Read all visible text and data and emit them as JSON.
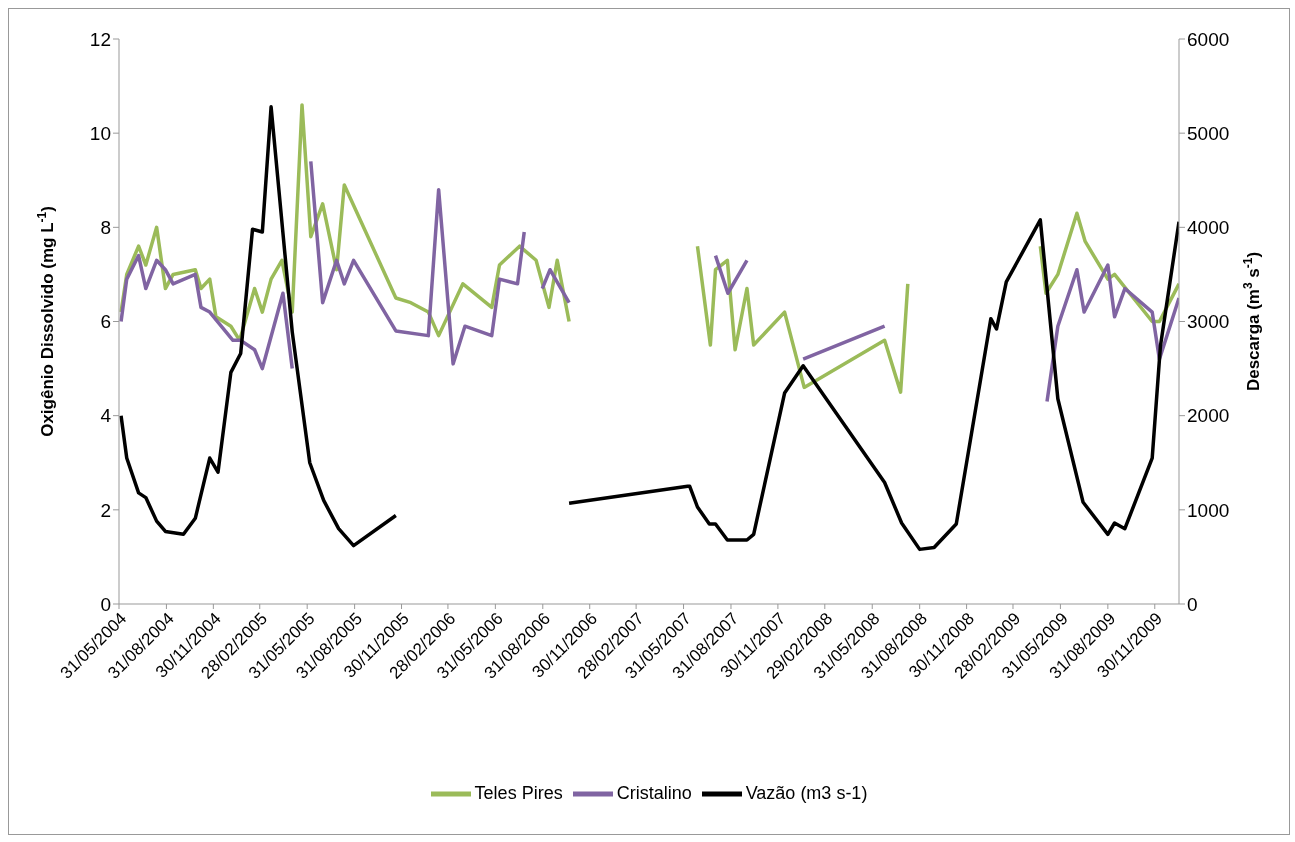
{
  "chart_data": {
    "type": "line",
    "ylabel": "Oxigênio Dissolvido  (mg L$^{-1}$)",
    "y2label": "Descarga (m$^{3}$ s$^{-1}$)",
    "xlim": [
      "2004-05-31",
      "2010-01-16"
    ],
    "xticks": [
      {
        "value": "2004-05-31",
        "label": "31/05/2004"
      },
      {
        "value": "2004-08-31",
        "label": "31/08/2004"
      },
      {
        "value": "2004-11-30",
        "label": "30/11/2004"
      },
      {
        "value": "2005-02-28",
        "label": "28/02/2005"
      },
      {
        "value": "2005-05-31",
        "label": "31/05/2005"
      },
      {
        "value": "2005-08-31",
        "label": "31/08/2005"
      },
      {
        "value": "2005-11-30",
        "label": "30/11/2005"
      },
      {
        "value": "2006-02-28",
        "label": "28/02/2006"
      },
      {
        "value": "2006-05-31",
        "label": "31/05/2006"
      },
      {
        "value": "2006-08-31",
        "label": "31/08/2006"
      },
      {
        "value": "2006-11-30",
        "label": "30/11/2006"
      },
      {
        "value": "2007-02-28",
        "label": "28/02/2007"
      },
      {
        "value": "2007-05-31",
        "label": "31/05/2007"
      },
      {
        "value": "2007-08-31",
        "label": "31/08/2007"
      },
      {
        "value": "2007-11-30",
        "label": "30/11/2007"
      },
      {
        "value": "2008-02-29",
        "label": "29/02/2008"
      },
      {
        "value": "2008-05-31",
        "label": "31/05/2008"
      },
      {
        "value": "2008-08-31",
        "label": "31/08/2008"
      },
      {
        "value": "2008-11-30",
        "label": "30/11/2008"
      },
      {
        "value": "2009-02-28",
        "label": "28/02/2009"
      },
      {
        "value": "2009-05-31",
        "label": "31/05/2009"
      },
      {
        "value": "2009-08-31",
        "label": "31/08/2009"
      },
      {
        "value": "2009-11-30",
        "label": "30/11/2009"
      }
    ],
    "ylim": [
      0,
      12
    ],
    "yticks": [
      0,
      2,
      4,
      6,
      8,
      10,
      12
    ],
    "y2lim": [
      0,
      6000
    ],
    "y2ticks": [
      0,
      1000,
      2000,
      3000,
      4000,
      5000,
      6000
    ],
    "grid": false,
    "legend": "bottom",
    "marker": "none",
    "line_style": "solid",
    "series": [
      {
        "name": "Teles Pires",
        "color": "#9bbb59",
        "x": [
          "2004-06-04",
          "2004-06-15",
          "2004-07-08",
          "2004-07-22",
          "2004-08-12",
          "2004-08-29",
          "2004-09-13",
          "2004-10-26",
          "2004-11-06",
          "2004-11-23",
          "2004-12-05",
          "2005-01-03",
          "2005-01-20",
          "2005-02-18",
          "2005-03-05",
          "2005-03-22",
          "2005-04-12",
          "2005-05-02",
          "2005-05-21",
          "2005-06-07",
          "2005-06-30",
          "2005-07-27",
          "2005-08-11",
          "2005-11-19",
          "2005-12-18",
          "2006-01-21",
          "2006-02-10",
          "2006-03-29",
          "2006-05-24",
          "2006-06-08",
          "2006-07-17",
          "2006-08-18",
          "2006-09-12",
          "2006-09-28",
          "2006-10-21",
          "2007-01-01",
          "2007-06-27",
          "2007-07-22",
          "2007-08-01",
          "2007-08-24",
          "2007-09-08",
          "2007-10-01",
          "2007-10-14",
          "2007-12-13",
          "2008-01-20",
          "2008-06-24",
          "2008-07-25",
          "2008-08-08",
          "2009-01-01",
          "2009-04-22",
          "2009-05-03",
          "2009-05-26",
          "2009-07-02",
          "2009-07-18",
          "2009-08-31",
          "2009-09-13",
          "2009-11-25",
          "2009-12-09",
          "2010-01-16"
        ],
        "values": [
          6.2,
          7.0,
          7.6,
          7.2,
          8.0,
          6.7,
          7.0,
          7.1,
          6.7,
          6.9,
          6.1,
          5.9,
          5.6,
          6.7,
          6.2,
          6.9,
          7.3,
          6.2,
          10.6,
          7.8,
          8.5,
          7.1,
          8.9,
          6.5,
          6.4,
          6.2,
          5.7,
          6.8,
          6.3,
          7.2,
          7.6,
          7.3,
          6.3,
          7.3,
          6.0,
          null,
          7.6,
          5.5,
          7.1,
          7.3,
          5.4,
          6.7,
          5.5,
          6.2,
          4.6,
          5.6,
          4.5,
          6.8,
          null,
          7.6,
          6.6,
          7.0,
          8.3,
          7.7,
          6.9,
          7.0,
          6.0,
          6.0,
          6.8
        ]
      },
      {
        "name": "Cristalino",
        "color": "#8064a2",
        "x": [
          "2004-06-04",
          "2004-06-15",
          "2004-07-08",
          "2004-07-22",
          "2004-08-12",
          "2004-08-29",
          "2004-09-13",
          "2004-10-26",
          "2004-11-06",
          "2004-11-23",
          "2005-01-07",
          "2005-01-22",
          "2005-02-18",
          "2005-03-05",
          "2005-04-14",
          "2005-05-02",
          "2005-05-20",
          "2005-06-07",
          "2005-06-30",
          "2005-07-27",
          "2005-08-11",
          "2005-08-29",
          "2005-11-19",
          "2006-01-21",
          "2006-02-10",
          "2006-03-10",
          "2006-04-02",
          "2006-05-24",
          "2006-06-08",
          "2006-07-13",
          "2006-07-26",
          "2006-08-10",
          "2006-08-30",
          "2006-09-14",
          "2006-10-21",
          "2007-03-01",
          "2007-08-01",
          "2007-08-25",
          "2007-10-01",
          "2007-11-01",
          "2008-01-18",
          "2008-06-24",
          "2009-01-01",
          "2009-05-05",
          "2009-05-26",
          "2009-07-02",
          "2009-07-16",
          "2009-08-31",
          "2009-09-13",
          "2009-10-03",
          "2009-11-25",
          "2009-12-09",
          "2010-01-16"
        ],
        "values": [
          6.0,
          6.9,
          7.4,
          6.7,
          7.3,
          7.1,
          6.8,
          7.0,
          6.3,
          6.2,
          5.6,
          5.6,
          5.4,
          5.0,
          6.6,
          5.0,
          null,
          9.4,
          6.4,
          7.3,
          6.8,
          7.3,
          5.8,
          5.7,
          8.8,
          5.1,
          5.9,
          5.7,
          6.9,
          6.8,
          7.9,
          null,
          6.7,
          7.1,
          6.4,
          null,
          7.4,
          6.6,
          7.3,
          null,
          5.2,
          5.9,
          null,
          4.3,
          5.9,
          7.1,
          6.2,
          7.2,
          6.1,
          6.7,
          6.2,
          5.2,
          6.5
        ]
      },
      {
        "name": "Vazão (m3 s-1)",
        "color": "#000000",
        "axis": "y2",
        "x": [
          "2004-06-04",
          "2004-06-15",
          "2004-07-08",
          "2004-07-22",
          "2004-08-12",
          "2004-08-29",
          "2004-10-03",
          "2004-10-26",
          "2004-11-23",
          "2004-12-09",
          "2005-01-03",
          "2005-01-22",
          "2005-02-14",
          "2005-03-05",
          "2005-03-22",
          "2005-05-02",
          "2005-06-05",
          "2005-07-02",
          "2005-07-31",
          "2005-08-29",
          "2005-11-19",
          "2006-03-01",
          "2006-10-21",
          "2007-06-08",
          "2007-06-12",
          "2007-06-27",
          "2007-07-20",
          "2007-08-01",
          "2007-08-24",
          "2007-10-01",
          "2007-10-14",
          "2007-12-13",
          "2008-01-18",
          "2008-06-24",
          "2008-07-27",
          "2008-08-31",
          "2008-09-28",
          "2008-11-10",
          "2009-01-16",
          "2009-01-27",
          "2009-02-15",
          "2009-04-22",
          "2009-05-26",
          "2009-07-14",
          "2009-08-31",
          "2009-09-13",
          "2009-10-03",
          "2009-11-25",
          "2009-12-11",
          "2010-01-16"
        ],
        "values": [
          2000,
          1550,
          1180,
          1130,
          880,
          770,
          740,
          910,
          1550,
          1400,
          2460,
          2660,
          3980,
          3950,
          5280,
          2890,
          1500,
          1100,
          800,
          620,
          940,
          null,
          1070,
          1250,
          1250,
          1030,
          850,
          850,
          680,
          680,
          740,
          2240,
          2530,
          1290,
          860,
          580,
          600,
          850,
          3030,
          2920,
          3420,
          4080,
          2180,
          1080,
          740,
          860,
          800,
          1550,
          2740,
          4060
        ]
      }
    ]
  }
}
